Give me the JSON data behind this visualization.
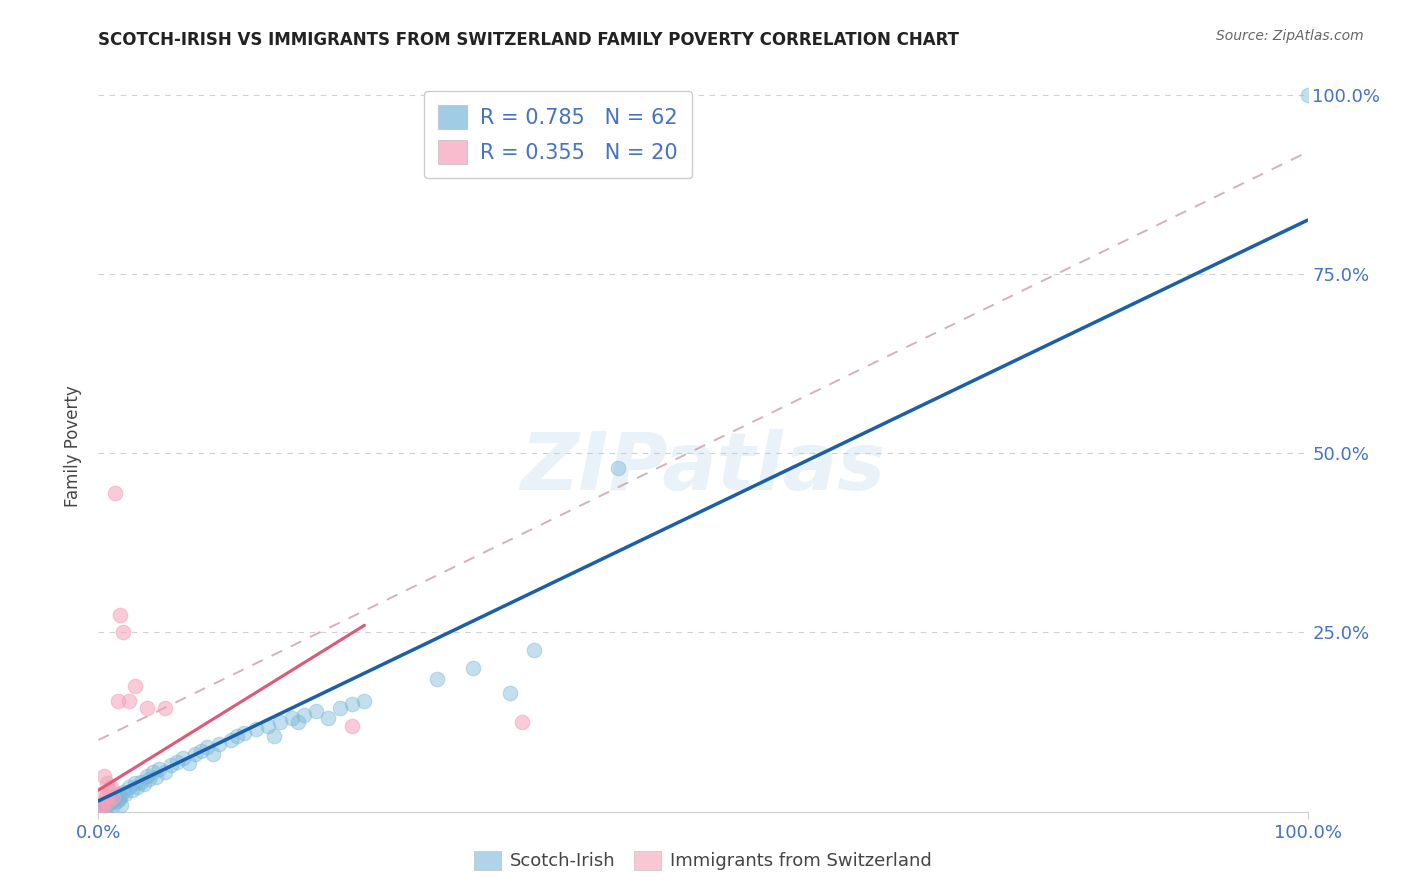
{
  "title": "SCOTCH-IRISH VS IMMIGRANTS FROM SWITZERLAND FAMILY POVERTY CORRELATION CHART",
  "source": "Source: ZipAtlas.com",
  "ylabel": "Family Poverty",
  "xlim": [
    0,
    1
  ],
  "ylim": [
    0,
    1.02
  ],
  "x_tick_labels": [
    "0.0%",
    "100.0%"
  ],
  "x_tick_positions": [
    0.0,
    1.0
  ],
  "y_tick_labels": [
    "25.0%",
    "50.0%",
    "75.0%",
    "100.0%"
  ],
  "y_tick_positions": [
    0.25,
    0.5,
    0.75,
    1.0
  ],
  "scotch_irish_color": "#7ab8d9",
  "swiss_color": "#f5a0b8",
  "blue_line_color": "#1a5fa8",
  "pink_line_color": "#e05878",
  "dashed_line_color": "#c8a0aa",
  "watermark_text": "ZIPatlas",
  "R_scotch": 0.785,
  "N_scotch": 62,
  "R_swiss": 0.355,
  "N_swiss": 20,
  "scotch_irish_points": [
    [
      0.002,
      0.005
    ],
    [
      0.003,
      0.008
    ],
    [
      0.004,
      0.012
    ],
    [
      0.005,
      0.005
    ],
    [
      0.006,
      0.01
    ],
    [
      0.007,
      0.015
    ],
    [
      0.008,
      0.008
    ],
    [
      0.009,
      0.012
    ],
    [
      0.01,
      0.02
    ],
    [
      0.011,
      0.015
    ],
    [
      0.012,
      0.01
    ],
    [
      0.013,
      0.018
    ],
    [
      0.014,
      0.022
    ],
    [
      0.015,
      0.015
    ],
    [
      0.016,
      0.025
    ],
    [
      0.017,
      0.018
    ],
    [
      0.018,
      0.02
    ],
    [
      0.019,
      0.01
    ],
    [
      0.02,
      0.028
    ],
    [
      0.022,
      0.025
    ],
    [
      0.025,
      0.035
    ],
    [
      0.028,
      0.03
    ],
    [
      0.03,
      0.04
    ],
    [
      0.032,
      0.035
    ],
    [
      0.035,
      0.042
    ],
    [
      0.038,
      0.038
    ],
    [
      0.04,
      0.05
    ],
    [
      0.042,
      0.045
    ],
    [
      0.045,
      0.055
    ],
    [
      0.048,
      0.048
    ],
    [
      0.05,
      0.06
    ],
    [
      0.055,
      0.055
    ],
    [
      0.06,
      0.065
    ],
    [
      0.065,
      0.07
    ],
    [
      0.07,
      0.075
    ],
    [
      0.075,
      0.068
    ],
    [
      0.08,
      0.08
    ],
    [
      0.085,
      0.085
    ],
    [
      0.09,
      0.09
    ],
    [
      0.095,
      0.08
    ],
    [
      0.1,
      0.095
    ],
    [
      0.11,
      0.1
    ],
    [
      0.115,
      0.105
    ],
    [
      0.12,
      0.11
    ],
    [
      0.13,
      0.115
    ],
    [
      0.14,
      0.12
    ],
    [
      0.145,
      0.105
    ],
    [
      0.15,
      0.125
    ],
    [
      0.16,
      0.13
    ],
    [
      0.165,
      0.125
    ],
    [
      0.17,
      0.135
    ],
    [
      0.18,
      0.14
    ],
    [
      0.19,
      0.13
    ],
    [
      0.2,
      0.145
    ],
    [
      0.21,
      0.15
    ],
    [
      0.22,
      0.155
    ],
    [
      0.28,
      0.185
    ],
    [
      0.31,
      0.2
    ],
    [
      0.34,
      0.165
    ],
    [
      0.36,
      0.225
    ],
    [
      0.43,
      0.48
    ],
    [
      1.0,
      1.0
    ]
  ],
  "swiss_points": [
    [
      0.002,
      0.025
    ],
    [
      0.003,
      0.01
    ],
    [
      0.004,
      0.005
    ],
    [
      0.005,
      0.05
    ],
    [
      0.006,
      0.02
    ],
    [
      0.007,
      0.04
    ],
    [
      0.008,
      0.015
    ],
    [
      0.009,
      0.03
    ],
    [
      0.01,
      0.035
    ],
    [
      0.012,
      0.02
    ],
    [
      0.014,
      0.445
    ],
    [
      0.016,
      0.155
    ],
    [
      0.018,
      0.275
    ],
    [
      0.02,
      0.25
    ],
    [
      0.025,
      0.155
    ],
    [
      0.03,
      0.175
    ],
    [
      0.04,
      0.145
    ],
    [
      0.055,
      0.145
    ],
    [
      0.21,
      0.12
    ],
    [
      0.35,
      0.125
    ]
  ],
  "scotch_trend": [
    0.0,
    1.0,
    0.015,
    0.825
  ],
  "swiss_solid_trend": [
    0.0,
    0.22,
    0.03,
    0.26
  ],
  "swiss_dashed_trend": [
    0.0,
    1.0,
    0.1,
    0.92
  ],
  "background_color": "#ffffff",
  "grid_color": "#cccccc",
  "title_color": "#222222",
  "axis_label_color": "#444444",
  "tick_color": "#4472c4",
  "legend_text_color": "#4472c4"
}
